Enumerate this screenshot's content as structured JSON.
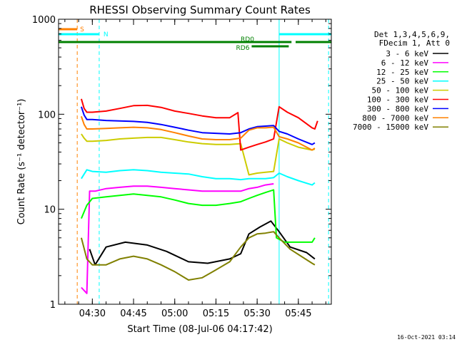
{
  "chart_data": {
    "type": "line",
    "title": "RHESSI Observing Summary Count Rates",
    "xlabel": "Start Time (08-Jul-06 04:17:42)",
    "ylabel": "Count Rate (s⁻¹ detector⁻¹)",
    "yscale": "log",
    "ylim": [
      1,
      1000
    ],
    "xlim": [
      "04:17:42",
      "05:57:00"
    ],
    "x_ticks": [
      "04:30",
      "04:45",
      "05:00",
      "05:15",
      "05:30",
      "05:45"
    ],
    "y_ticks": [
      "1",
      "10",
      "100",
      "1000"
    ],
    "legend": {
      "position": "right",
      "header_lines": [
        "Det 1,3,4,5,6,9,",
        "FDecim 1, Att 0"
      ]
    },
    "series": [
      {
        "name": "3 - 6 keV",
        "color": "#000000",
        "x": [
          "04:29",
          "04:31",
          "04:35",
          "04:42",
          "04:50",
          "04:57",
          "05:05",
          "05:12",
          "05:20",
          "05:24",
          "05:27",
          "05:31",
          "05:35",
          "05:38",
          "05:42",
          "05:48",
          "05:51"
        ],
        "values": [
          3.8,
          2.6,
          4.0,
          4.5,
          4.2,
          3.6,
          2.8,
          2.7,
          3.0,
          3.4,
          5.5,
          6.5,
          7.5,
          5.8,
          4.0,
          3.5,
          3.0
        ]
      },
      {
        "name": "6 - 12 keV",
        "color": "#ff00ff",
        "x": [
          "04:26",
          "04:28",
          "04:29",
          "04:31",
          "04:35",
          "04:40",
          "04:45",
          "04:50",
          "04:55",
          "05:00",
          "05:05",
          "05:10",
          "05:15",
          "05:20",
          "05:24",
          "05:27",
          "05:30",
          "05:33",
          "05:36"
        ],
        "values": [
          1.5,
          1.3,
          15.5,
          15.5,
          16.5,
          17,
          17.5,
          17.5,
          17,
          16.5,
          16,
          15.5,
          15.5,
          15.5,
          15.5,
          16.5,
          17,
          18,
          18.5
        ]
      },
      {
        "name": "12 - 25 keV",
        "color": "#00ff00",
        "x": [
          "04:26",
          "04:28",
          "04:30",
          "04:35",
          "04:40",
          "04:45",
          "04:50",
          "04:55",
          "05:00",
          "05:05",
          "05:10",
          "05:15",
          "05:20",
          "05:24",
          "05:27",
          "05:30",
          "05:33",
          "05:36",
          "05:37",
          "05:40",
          "05:45",
          "05:50",
          "05:51"
        ],
        "values": [
          8.0,
          11,
          13,
          13.5,
          14,
          14.5,
          14,
          13.5,
          12.5,
          11.5,
          11,
          11,
          11.5,
          12,
          13,
          14,
          15,
          16,
          5.0,
          4.5,
          4.5,
          4.5,
          5.0
        ]
      },
      {
        "name": "25 - 50 keV",
        "color": "#00ffff",
        "x": [
          "04:26",
          "04:28",
          "04:30",
          "04:35",
          "04:40",
          "04:45",
          "04:50",
          "04:55",
          "05:00",
          "05:05",
          "05:10",
          "05:15",
          "05:20",
          "05:24",
          "05:27",
          "05:30",
          "05:33",
          "05:36",
          "05:38",
          "05:41",
          "05:45",
          "05:50",
          "05:51"
        ],
        "values": [
          21,
          26,
          25,
          24.5,
          25.5,
          26,
          25.5,
          24.5,
          24,
          23.5,
          22,
          21,
          21,
          20.5,
          21,
          21,
          21,
          21.5,
          24,
          22,
          20,
          18,
          19
        ]
      },
      {
        "name": "50 - 100 keV",
        "color": "#cccc00",
        "x": [
          "04:26",
          "04:27",
          "04:28",
          "04:30",
          "04:35",
          "04:40",
          "04:45",
          "04:50",
          "04:55",
          "05:00",
          "05:05",
          "05:10",
          "05:15",
          "05:20",
          "05:24",
          "05:27",
          "05:30",
          "05:33",
          "05:36",
          "05:38",
          "05:41",
          "05:45",
          "05:50",
          "05:51"
        ],
        "values": [
          62,
          56,
          52,
          52,
          53,
          55,
          56,
          57,
          57,
          54,
          51,
          49,
          48,
          48,
          49,
          23,
          24,
          24.5,
          25,
          55,
          50,
          45,
          42,
          43
        ]
      },
      {
        "name": "100 - 300 keV",
        "color": "#ff0000",
        "x": [
          "04:26",
          "04:27",
          "04:28",
          "04:30",
          "04:35",
          "04:40",
          "04:45",
          "04:50",
          "04:55",
          "05:00",
          "05:05",
          "05:10",
          "05:15",
          "05:20",
          "05:23",
          "05:24",
          "05:27",
          "05:30",
          "05:33",
          "05:36",
          "05:38",
          "05:41",
          "05:45",
          "05:50",
          "05:51",
          "05:52"
        ],
        "values": [
          145,
          115,
          105,
          105,
          108,
          115,
          123,
          124,
          118,
          108,
          102,
          96,
          92,
          92,
          104,
          42,
          45,
          48,
          51,
          55,
          120,
          105,
          92,
          72,
          70,
          85
        ]
      },
      {
        "name": "300 - 800 keV",
        "color": "#0000ff",
        "x": [
          "04:26",
          "04:27",
          "04:28",
          "04:30",
          "04:35",
          "04:40",
          "04:45",
          "04:50",
          "04:55",
          "05:00",
          "05:05",
          "05:10",
          "05:15",
          "05:20",
          "05:24",
          "05:27",
          "05:30",
          "05:33",
          "05:36",
          "05:38",
          "05:41",
          "05:45",
          "05:50",
          "05:51"
        ],
        "values": [
          120,
          98,
          88,
          88,
          86,
          85,
          84,
          82,
          78,
          73,
          68,
          64,
          63,
          62,
          64,
          70,
          74,
          75,
          76,
          66,
          62,
          55,
          48,
          50
        ]
      },
      {
        "name": "800 - 7000 keV",
        "color": "#ff8000",
        "x": [
          "04:26",
          "04:27",
          "04:28",
          "04:30",
          "04:35",
          "04:40",
          "04:45",
          "04:50",
          "04:55",
          "05:00",
          "05:05",
          "05:10",
          "05:15",
          "05:20",
          "05:24",
          "05:27",
          "05:30",
          "05:33",
          "05:36",
          "05:38",
          "05:41",
          "05:45",
          "05:50",
          "05:51"
        ],
        "values": [
          95,
          78,
          70,
          70,
          71,
          72,
          73,
          72,
          69,
          64,
          59,
          55,
          54,
          54,
          56,
          68,
          72,
          72,
          73,
          58,
          55,
          50,
          42,
          44
        ]
      },
      {
        "name": "7000 - 15000 keV",
        "color": "#808000",
        "x": [
          "04:26",
          "04:28",
          "04:30",
          "04:35",
          "04:40",
          "04:45",
          "04:50",
          "04:55",
          "05:00",
          "05:05",
          "05:10",
          "05:15",
          "05:20",
          "05:24",
          "05:27",
          "05:30",
          "05:33",
          "05:36",
          "05:38",
          "05:42",
          "05:46",
          "05:50",
          "05:51"
        ],
        "values": [
          5.0,
          3.0,
          2.6,
          2.6,
          3.0,
          3.2,
          3.0,
          2.6,
          2.2,
          1.8,
          1.9,
          2.3,
          2.8,
          4.0,
          5.0,
          5.5,
          5.6,
          5.8,
          5.0,
          3.8,
          3.2,
          2.7,
          2.6
        ]
      }
    ],
    "flags": [
      {
        "label": "S",
        "color": "#ff8000",
        "x_start": "04:17:42",
        "x_end": "04:24:30"
      },
      {
        "label": "N",
        "color": "#00ffff",
        "x_start": "04:17:42",
        "x_end": "04:32:30"
      },
      {
        "label": "N",
        "color": "#00ffff",
        "x_start": "05:38:00",
        "x_end": "05:57:00"
      },
      {
        "label": "RD0",
        "color": "#008000",
        "x_start": "04:17:42",
        "x_end": "05:42:30"
      },
      {
        "label": "RD0",
        "color": "#008000",
        "x_start": "05:44:00",
        "x_end": "05:57:00"
      },
      {
        "label": "RD6",
        "color": "#008000",
        "x_start": "05:28:00",
        "x_end": "05:41:30"
      }
    ],
    "vlines": [
      {
        "x": "04:24:30",
        "color": "#ff8000",
        "style": "dashed"
      },
      {
        "x": "04:32:30",
        "color": "#00ffff",
        "style": "dashed"
      },
      {
        "x": "05:38:00",
        "color": "#00ffff",
        "style": "solid"
      },
      {
        "x": "05:56:00",
        "color": "#00ffff",
        "style": "dashed"
      }
    ]
  },
  "footer": {
    "timestamp": "16-Oct-2021 03:14"
  }
}
